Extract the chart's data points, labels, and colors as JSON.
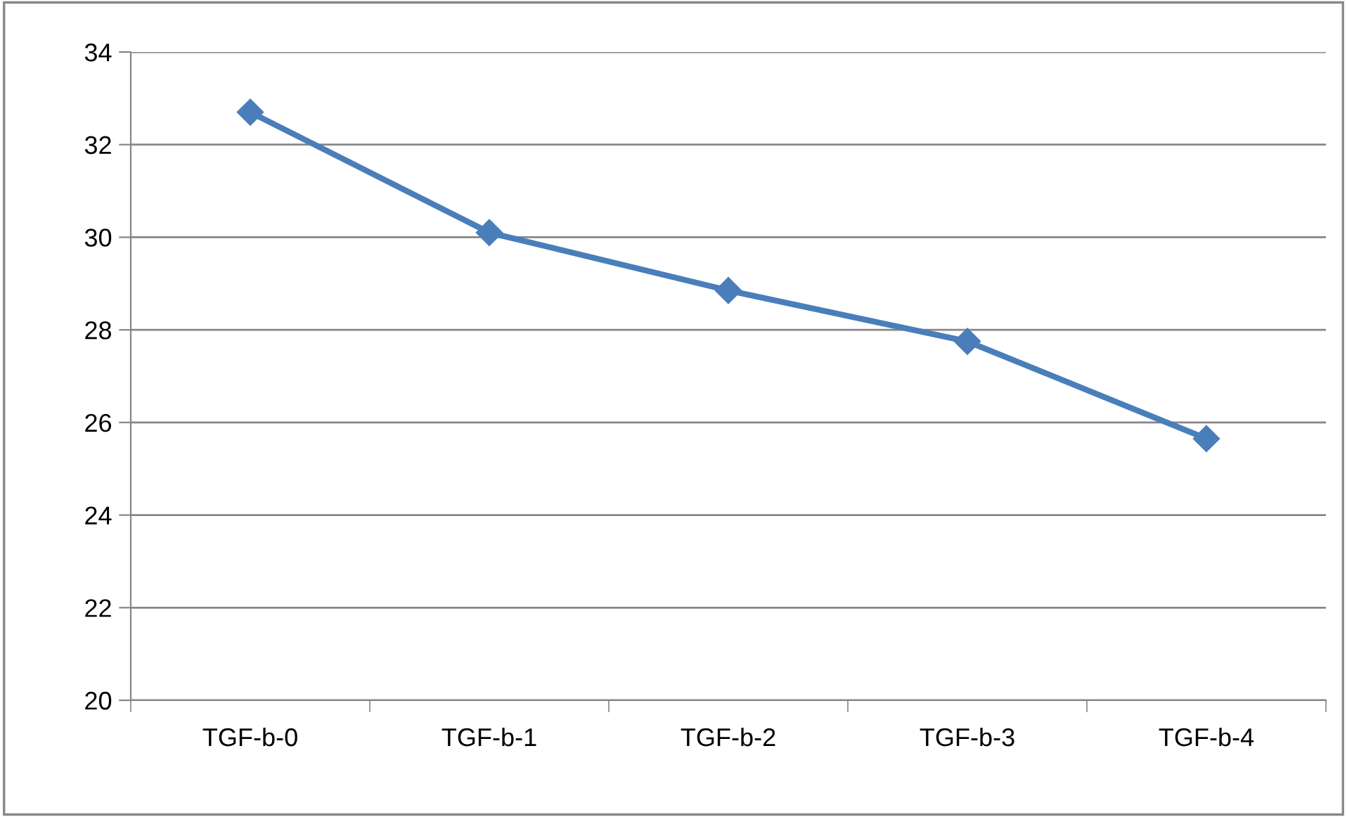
{
  "chart_data": {
    "type": "line",
    "categories": [
      "TGF-b-0",
      "TGF-b-1",
      "TGF-b-2",
      "TGF-b-3",
      "TGF-b-4"
    ],
    "series": [
      {
        "color": "#4a7ebb",
        "values": [
          32.7,
          30.1,
          28.85,
          27.75,
          25.65
        ]
      }
    ],
    "ylim": [
      20,
      34
    ],
    "yticks": [
      20,
      22,
      24,
      26,
      28,
      30,
      32,
      34
    ],
    "grid": "y",
    "marker": "diamond",
    "line_style": "solid",
    "legend": false
  }
}
